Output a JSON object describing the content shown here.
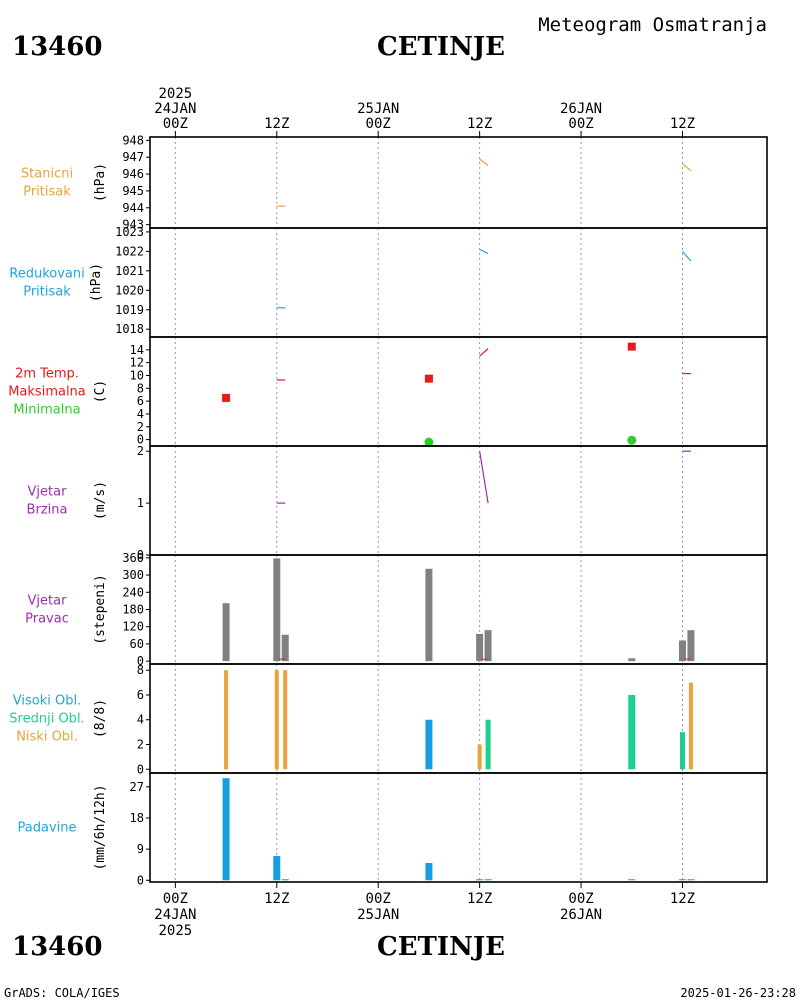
{
  "header": {
    "station_id": "13460",
    "station_name": "CETINJE",
    "title": "Meteogram Osmatranja"
  },
  "footer": {
    "credit": "GrADS: COLA/IGES",
    "timestamp": "2025-01-26-23:28"
  },
  "time_axis": {
    "top_labels": [
      {
        "t": 0,
        "lines": [
          "2025",
          "24JAN",
          "00Z"
        ]
      },
      {
        "t": 12,
        "lines": [
          "12Z"
        ]
      },
      {
        "t": 24,
        "lines": [
          "25JAN",
          "00Z"
        ]
      },
      {
        "t": 36,
        "lines": [
          "12Z"
        ]
      },
      {
        "t": 48,
        "lines": [
          "26JAN",
          "00Z"
        ]
      },
      {
        "t": 60,
        "lines": [
          "12Z"
        ]
      }
    ],
    "bottom_labels": [
      {
        "t": 0,
        "lines": [
          "00Z",
          "24JAN",
          "2025"
        ]
      },
      {
        "t": 12,
        "lines": [
          "12Z"
        ]
      },
      {
        "t": 24,
        "lines": [
          "00Z",
          "25JAN"
        ]
      },
      {
        "t": 36,
        "lines": [
          "12Z"
        ]
      },
      {
        "t": 48,
        "lines": [
          "00Z",
          "26JAN"
        ]
      },
      {
        "t": 60,
        "lines": [
          "12Z"
        ]
      }
    ],
    "range_hours": [
      -3,
      70
    ]
  },
  "colors": {
    "orange": "#e8a33a",
    "cyan": "#1ea6d8",
    "red": "#e41a1c",
    "green": "#2ecc2e",
    "purple": "#9b2fae",
    "gray": "#808080",
    "teal": "#1dcf8f",
    "blue": "#14a0e0"
  },
  "chart_data": [
    {
      "id": "stanicni",
      "type": "line",
      "labels": [
        {
          "text": "Stanicni",
          "color": "#e8a33a"
        },
        {
          "text": "Pritisak",
          "color": "#e8a33a"
        }
      ],
      "unit": "(hPa)",
      "ylim": [
        942.8,
        948.2
      ],
      "yticks": [
        "943",
        "944",
        "945",
        "946",
        "947",
        "948"
      ],
      "series": [
        {
          "color": "#e8a33a",
          "segments": [
            [
              [
                12,
                944.1
              ],
              [
                13,
                944.1
              ]
            ],
            [
              [
                36,
                946.9
              ],
              [
                37,
                946.5
              ]
            ],
            [
              [
                60,
                946.6
              ],
              [
                61,
                946.2
              ]
            ]
          ]
        }
      ]
    },
    {
      "id": "redukovani",
      "type": "line",
      "labels": [
        {
          "text": "Redukovani",
          "color": "#1ea6d8"
        },
        {
          "text": "Pritisak",
          "color": "#1ea6d8"
        }
      ],
      "unit": "(hPa)",
      "ylim": [
        1017.6,
        1023.2
      ],
      "yticks": [
        "1018",
        "1019",
        "1020",
        "1021",
        "1022",
        "1023"
      ],
      "series": [
        {
          "color": "#1ea6d8",
          "segments": [
            [
              [
                12,
                1019.1
              ],
              [
                13,
                1019.1
              ]
            ],
            [
              [
                36,
                1022.1
              ],
              [
                37,
                1021.9
              ]
            ],
            [
              [
                60,
                1022.0
              ],
              [
                61,
                1021.5
              ]
            ]
          ]
        }
      ]
    },
    {
      "id": "temp",
      "type": "line",
      "labels": [
        {
          "text": "2m Temp.",
          "color": "#e41a1c"
        },
        {
          "text": "Maksimalna",
          "color": "#e41a1c"
        },
        {
          "text": "Minimalna",
          "color": "#2ecc2e"
        }
      ],
      "unit": "(C)",
      "ylim": [
        -1,
        16
      ],
      "yticks": [
        "0",
        "2",
        "4",
        "6",
        "8",
        "10",
        "12",
        "14"
      ],
      "series": [
        {
          "color": "#e41a1c",
          "segments": [
            [
              [
                12,
                9.3
              ],
              [
                13,
                9.3
              ]
            ],
            [
              [
                36,
                13.0
              ],
              [
                37,
                14.2
              ]
            ],
            [
              [
                60,
                10.3
              ],
              [
                61,
                10.3
              ]
            ]
          ]
        }
      ],
      "markers": [
        {
          "kind": "square",
          "color": "#e41a1c",
          "t": 6,
          "v": 6.5
        },
        {
          "kind": "square",
          "color": "#e41a1c",
          "t": 30,
          "v": 9.5
        },
        {
          "kind": "square",
          "color": "#e41a1c",
          "t": 54,
          "v": 14.5
        },
        {
          "kind": "circle",
          "color": "#2ecc2e",
          "t": 30,
          "v": -0.4
        },
        {
          "kind": "circle",
          "color": "#2ecc2e",
          "t": 54,
          "v": -0.1
        }
      ]
    },
    {
      "id": "brzina",
      "type": "line",
      "labels": [
        {
          "text": "Vjetar",
          "color": "#9b2fae"
        },
        {
          "text": "Brzina",
          "color": "#9b2fae"
        }
      ],
      "unit": "(m/s)",
      "ylim": [
        0,
        2.1
      ],
      "yticks": [
        "0",
        "1",
        "2"
      ],
      "series": [
        {
          "color": "#9b2fae",
          "segments": [
            [
              [
                12,
                1.0
              ],
              [
                13,
                1.0
              ]
            ],
            [
              [
                36,
                2.0
              ],
              [
                37,
                1.0
              ]
            ],
            [
              [
                60,
                2.0
              ],
              [
                61,
                2.0
              ]
            ]
          ]
        }
      ]
    },
    {
      "id": "pravac",
      "type": "bar",
      "labels": [
        {
          "text": "Vjetar",
          "color": "#9b2fae"
        },
        {
          "text": "Pravac",
          "color": "#9b2fae"
        }
      ],
      "unit": "(stepeni)",
      "ylim": [
        -10,
        370
      ],
      "yticks": [
        "0",
        "60",
        "120",
        "180",
        "240",
        "300",
        "360"
      ],
      "bars": [
        {
          "t": 6,
          "v": 202,
          "color": "#808080"
        },
        {
          "t": 12,
          "v": 358,
          "color": "#808080"
        },
        {
          "t": 13,
          "v": 92,
          "color": "#808080"
        },
        {
          "t": 30,
          "v": 322,
          "color": "#808080"
        },
        {
          "t": 36,
          "v": 95,
          "color": "#808080"
        },
        {
          "t": 37,
          "v": 108,
          "color": "#808080"
        },
        {
          "t": 54,
          "v": 10,
          "color": "#808080"
        },
        {
          "t": 60,
          "v": 72,
          "color": "#808080"
        },
        {
          "t": 61,
          "v": 108,
          "color": "#808080"
        }
      ],
      "ticks_red": [
        12.6,
        36.6,
        60.6
      ]
    },
    {
      "id": "oblacnost",
      "type": "bar",
      "labels": [
        {
          "text": "Visoki Obl.",
          "color": "#1ea6d8"
        },
        {
          "text": "Srednji Obl.",
          "color": "#1dcf8f"
        },
        {
          "text": "Niski Obl.",
          "color": "#e8a33a"
        }
      ],
      "unit": "(8/8)",
      "ylim": [
        -0.3,
        8.5
      ],
      "yticks": [
        "0",
        "2",
        "4",
        "6",
        "8"
      ],
      "bars": [
        {
          "t": 6,
          "v": 8,
          "color": "#e8a33a",
          "w": 4
        },
        {
          "t": 12,
          "v": 8,
          "color": "#e8a33a",
          "w": 4
        },
        {
          "t": 13,
          "v": 8,
          "color": "#e8a33a",
          "w": 4
        },
        {
          "t": 30,
          "v": 4,
          "color": "#14a0e0",
          "w": 7
        },
        {
          "t": 36,
          "v": 2,
          "color": "#e8a33a",
          "w": 4
        },
        {
          "t": 37,
          "v": 4,
          "color": "#1dcf8f",
          "w": 5
        },
        {
          "t": 54,
          "v": 6,
          "color": "#1dcf8f",
          "w": 7
        },
        {
          "t": 60,
          "v": 3,
          "color": "#1dcf8f",
          "w": 5
        },
        {
          "t": 61,
          "v": 7,
          "color": "#e8a33a",
          "w": 4
        }
      ]
    },
    {
      "id": "padavine",
      "type": "bar",
      "labels": [
        {
          "text": "Padavine",
          "color": "#1ea6d8"
        }
      ],
      "unit": "(mm/6h/12h)",
      "ylim": [
        -0.5,
        31
      ],
      "yticks": [
        "0",
        "9",
        "18",
        "27"
      ],
      "bars": [
        {
          "t": 6,
          "v": 29.5,
          "color": "#14a0e0",
          "w": 7
        },
        {
          "t": 12,
          "v": 7,
          "color": "#14a0e0",
          "w": 7
        },
        {
          "t": 13,
          "v": 0.3,
          "color": "#14a0e0",
          "w": 7
        },
        {
          "t": 30,
          "v": 5,
          "color": "#14a0e0",
          "w": 7
        },
        {
          "t": 36,
          "v": 0.3,
          "color": "#14a0e0",
          "w": 7
        },
        {
          "t": 37,
          "v": 0.3,
          "color": "#14a0e0",
          "w": 7
        },
        {
          "t": 54,
          "v": 0.3,
          "color": "#14a0e0",
          "w": 7
        },
        {
          "t": 60,
          "v": 0.3,
          "color": "#14a0e0",
          "w": 7
        },
        {
          "t": 61,
          "v": 0.3,
          "color": "#14a0e0",
          "w": 7
        }
      ]
    }
  ]
}
